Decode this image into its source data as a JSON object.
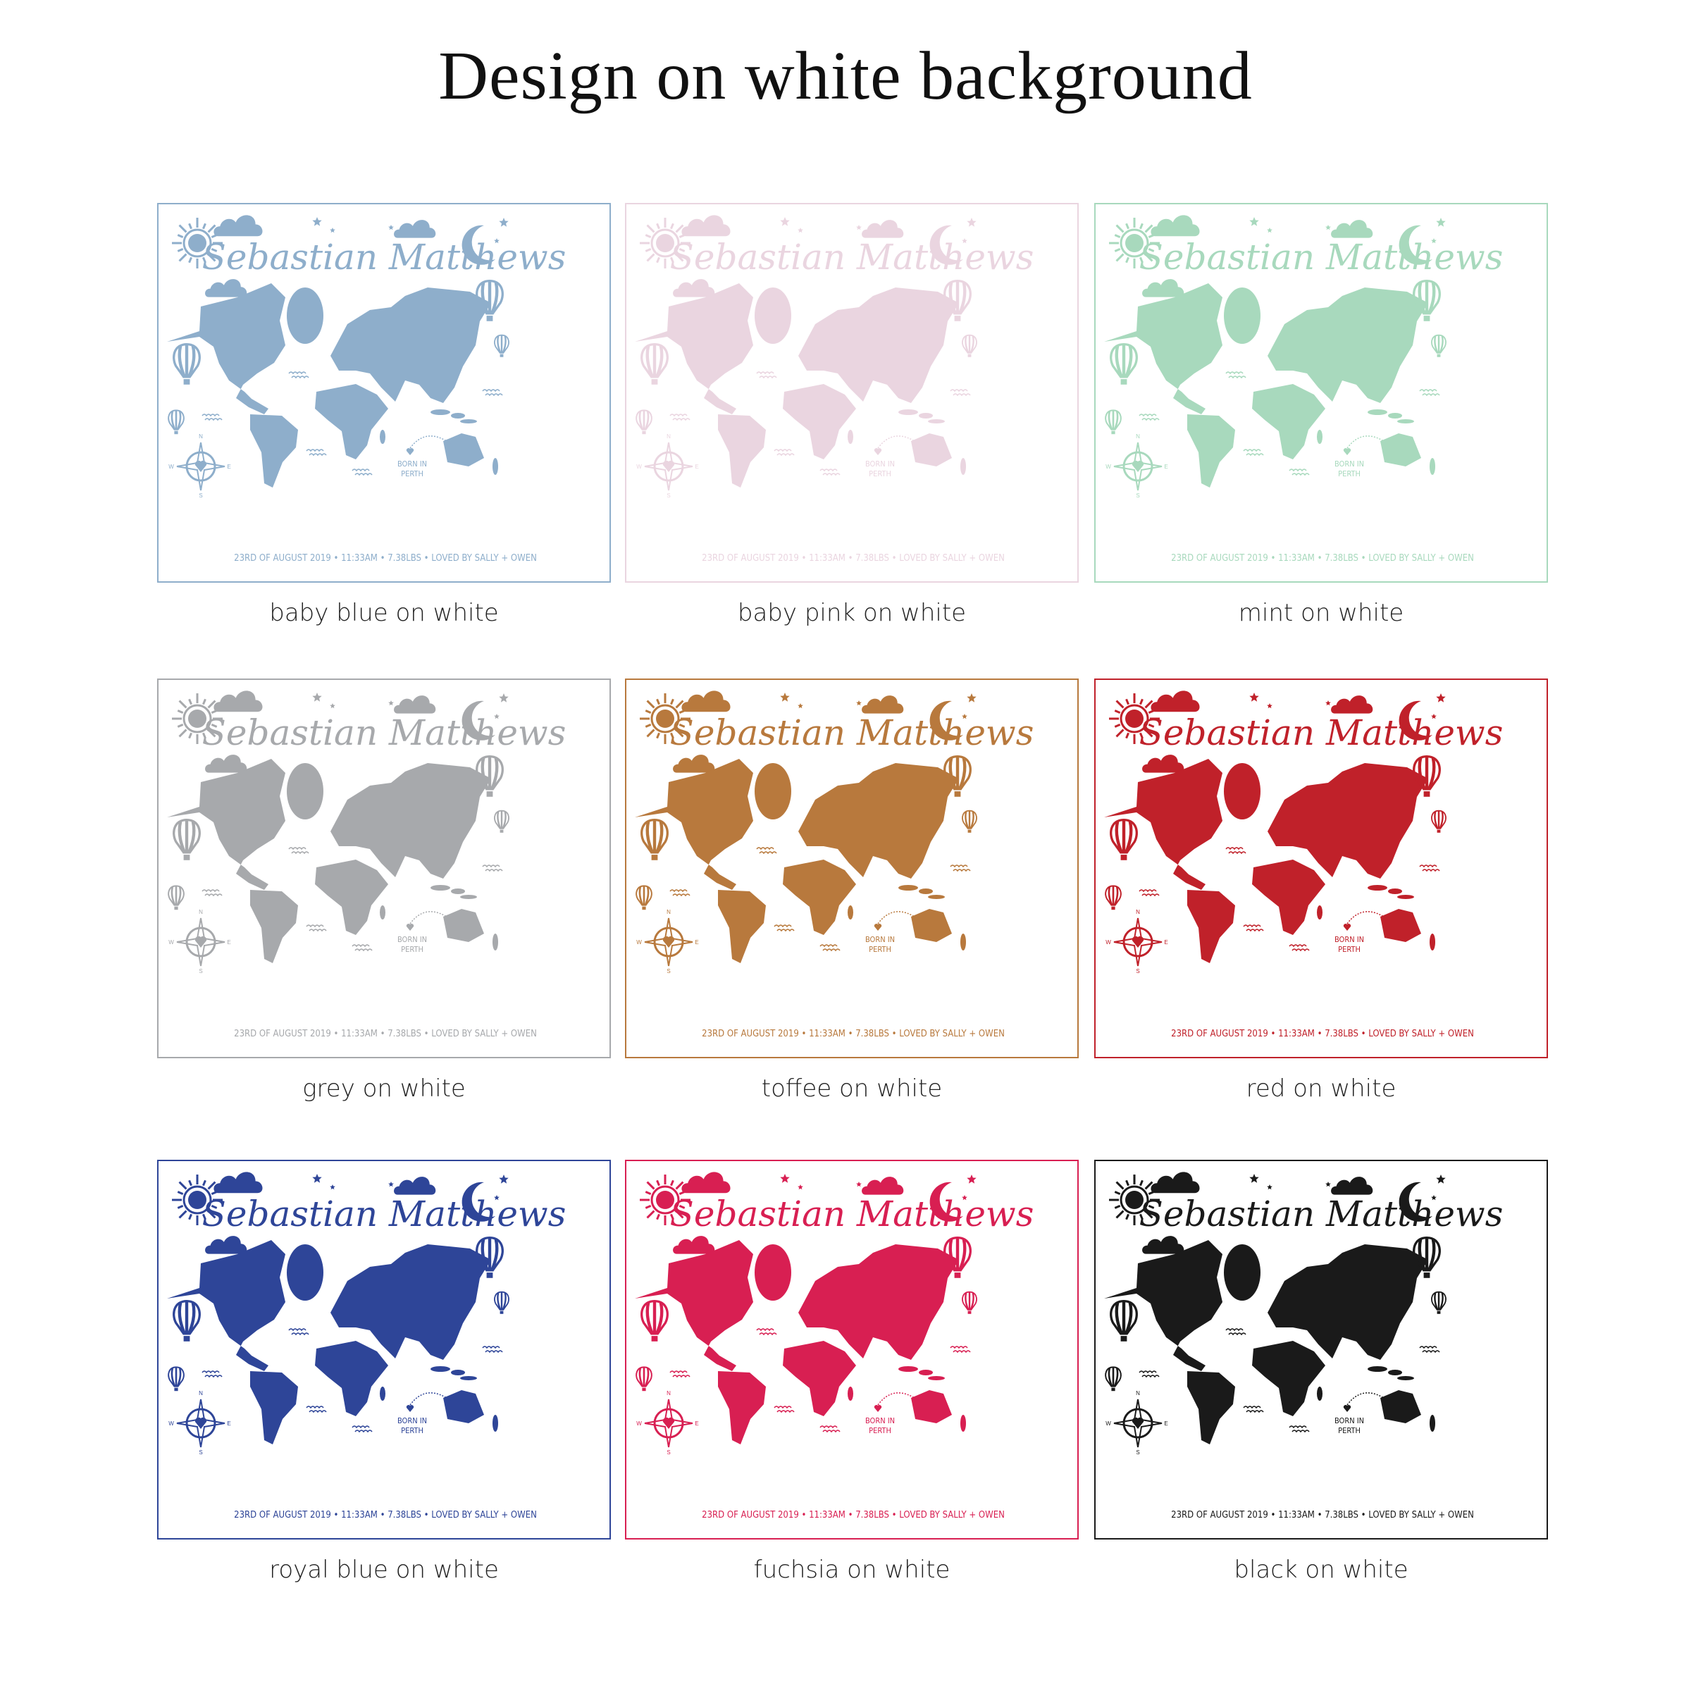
{
  "title": "Design on white background",
  "print": {
    "name": "Sebastian Matthews",
    "born_line1": "BORN IN",
    "born_line2": "PERTH",
    "footer": "23RD OF AUGUST 2019  •  11:33AM  •  7.38LBS  •  LOVED BY SALLY + OWEN",
    "compass": {
      "n": "N",
      "e": "E",
      "s": "S",
      "w": "W"
    }
  },
  "variants": [
    {
      "label": "baby blue on white",
      "color": "#8EAECB"
    },
    {
      "label": "baby pink on white",
      "color": "#EAD5E0"
    },
    {
      "label": "mint on white",
      "color": "#A8D9BD"
    },
    {
      "label": "grey on white",
      "color": "#A7A9AC"
    },
    {
      "label": "toffee on white",
      "color": "#B8793D"
    },
    {
      "label": "red on white",
      "color": "#C0212A"
    },
    {
      "label": "royal blue on white",
      "color": "#2E4598"
    },
    {
      "label": "fuchsia on white",
      "color": "#D81F52"
    },
    {
      "label": "black on white",
      "color": "#1A1A1A"
    }
  ]
}
